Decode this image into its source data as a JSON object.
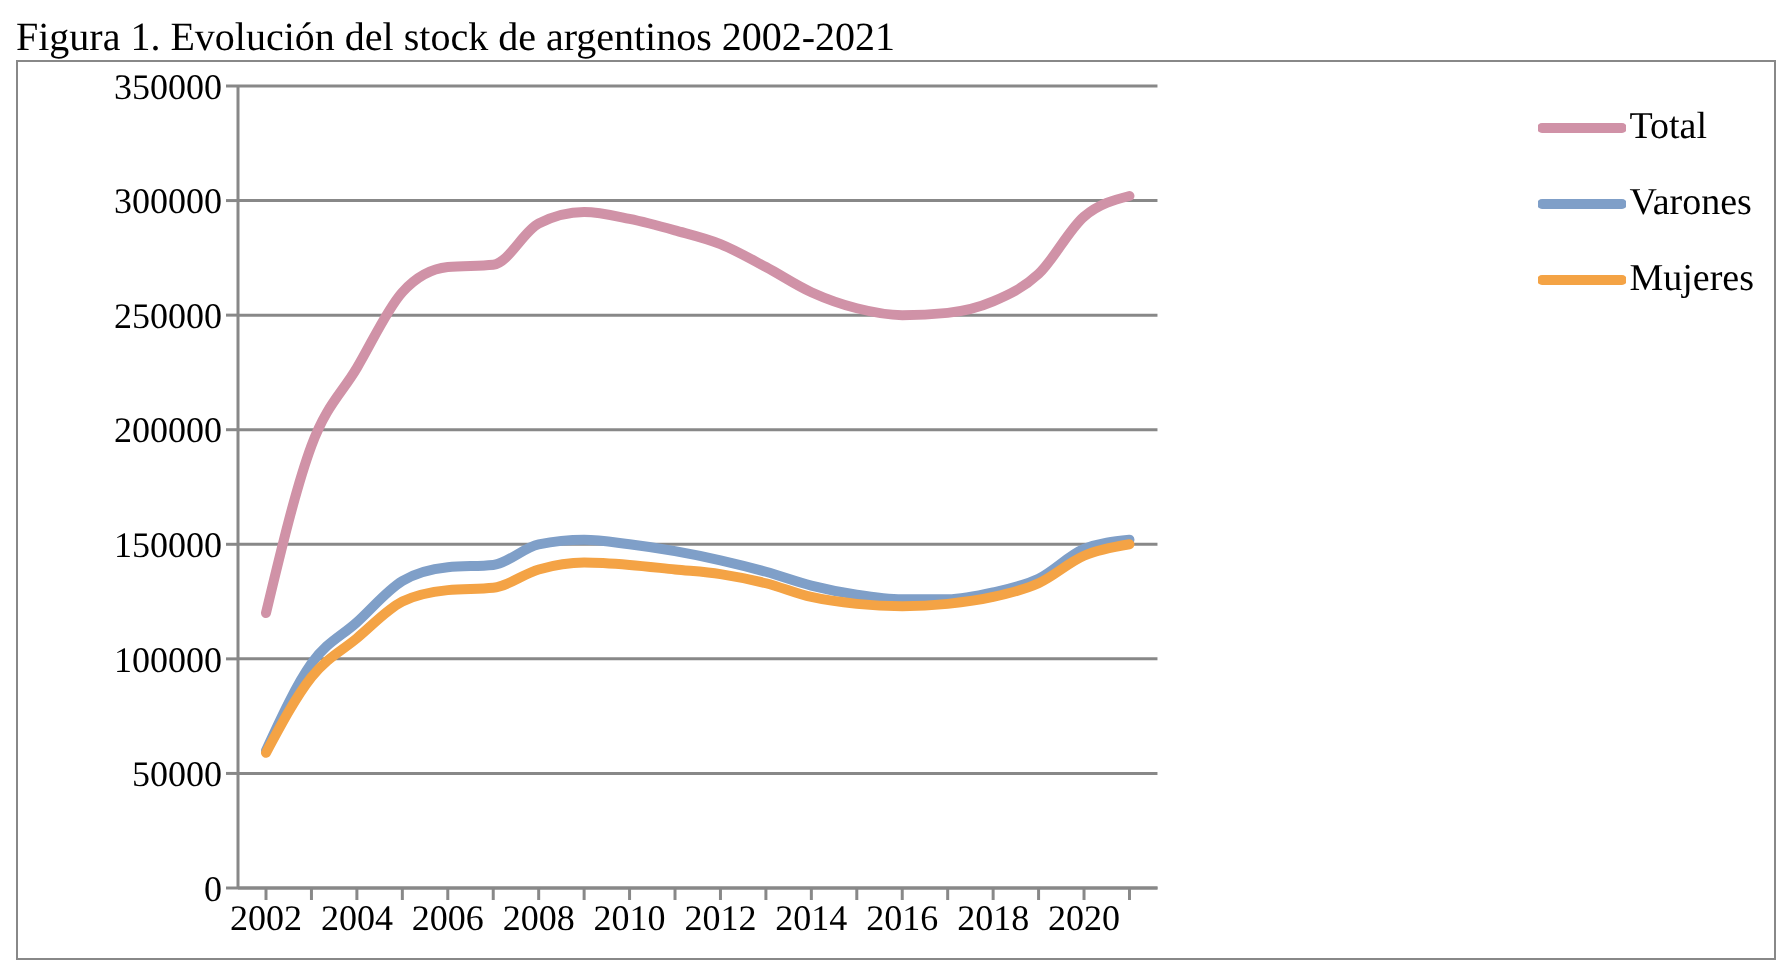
{
  "chart_data": {
    "type": "line",
    "title": "Figura 1. Evolución del stock de argentinos 2002-2021",
    "categories": [
      "2002",
      null,
      "2004",
      null,
      "2006",
      null,
      "2008",
      null,
      "2010",
      null,
      "2012",
      null,
      "2014",
      null,
      "2016",
      null,
      "2018",
      null,
      "2020",
      null
    ],
    "series": [
      {
        "name": "Total",
        "color": "#d092a7",
        "values": [
          120000,
          193000,
          227000,
          260000,
          271000,
          272000,
          290000,
          295000,
          292000,
          287000,
          281000,
          271000,
          260000,
          253000,
          250000,
          251000,
          256000,
          268000,
          293000,
          302000
        ]
      },
      {
        "name": "Varones",
        "color": "#7f9fc8",
        "values": [
          60000,
          98000,
          116000,
          134000,
          140000,
          141000,
          150000,
          152000,
          150000,
          147000,
          143000,
          138000,
          132000,
          128000,
          126000,
          126000,
          129000,
          135000,
          148000,
          152000
        ]
      },
      {
        "name": "Mujeres",
        "color": "#f4a345",
        "values": [
          59000,
          92000,
          109000,
          125000,
          130000,
          131000,
          139000,
          142000,
          141000,
          139000,
          137000,
          133000,
          127000,
          124000,
          123000,
          124000,
          127000,
          133000,
          145000,
          150000
        ]
      }
    ],
    "ylim": [
      0,
      350000
    ],
    "yticks": [
      0,
      50000,
      100000,
      150000,
      200000,
      250000,
      300000,
      350000
    ],
    "grid": "y",
    "legend": "top right",
    "marker": "none",
    "line_style": "solid"
  }
}
